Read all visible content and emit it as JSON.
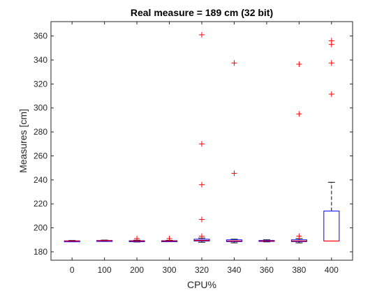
{
  "chart_data": {
    "type": "boxplot",
    "title": "Real measure = 189 cm (32 bit)",
    "xlabel": "CPU%",
    "ylabel": "Measures [cm]",
    "ylim": [
      173,
      372
    ],
    "yticks": [
      180,
      200,
      220,
      240,
      260,
      280,
      300,
      320,
      340,
      360
    ],
    "grid": false,
    "categories": [
      "0",
      "100",
      "200",
      "300",
      "320",
      "340",
      "360",
      "380",
      "400"
    ],
    "boxes": [
      {
        "category": "0",
        "whisker_low": 188.6,
        "q1": 188.8,
        "median": 189.0,
        "q3": 189.2,
        "whisker_high": 189.5,
        "outliers": []
      },
      {
        "category": "100",
        "whisker_low": 188.7,
        "q1": 189.0,
        "median": 189.3,
        "q3": 189.5,
        "whisker_high": 189.8,
        "outliers": []
      },
      {
        "category": "200",
        "whisker_low": 188.2,
        "q1": 188.6,
        "median": 189.0,
        "q3": 189.3,
        "whisker_high": 189.7,
        "outliers": [
          191
        ]
      },
      {
        "category": "300",
        "whisker_low": 188.4,
        "q1": 188.7,
        "median": 189.0,
        "q3": 189.3,
        "whisker_high": 189.6,
        "outliers": [
          191
        ]
      },
      {
        "category": "320",
        "whisker_low": 188.0,
        "q1": 189.0,
        "median": 189.5,
        "q3": 190.5,
        "whisker_high": 191.5,
        "outliers": [
          193,
          207,
          236,
          270,
          361
        ]
      },
      {
        "category": "340",
        "whisker_low": 187.5,
        "q1": 188.5,
        "median": 189.0,
        "q3": 190.0,
        "whisker_high": 190.5,
        "outliers": [
          245.5,
          337.5
        ]
      },
      {
        "category": "360",
        "whisker_low": 188.3,
        "q1": 188.7,
        "median": 189.0,
        "q3": 189.5,
        "whisker_high": 190.0,
        "outliers": []
      },
      {
        "category": "380",
        "whisker_low": 187.5,
        "q1": 188.5,
        "median": 189.0,
        "q3": 190.0,
        "whisker_high": 191.0,
        "outliers": [
          193,
          295,
          336.5
        ]
      },
      {
        "category": "400",
        "whisker_low": 189.0,
        "q1": 189.0,
        "median": 189.0,
        "q3": 214.0,
        "whisker_high": 238.0,
        "outliers": [
          311.5,
          337.5,
          353,
          356
        ]
      }
    ],
    "colors": {
      "box": "#0000ff",
      "median": "#ff0000",
      "whisker": "#000000",
      "outlier": "#ff0000",
      "axis": "#262626"
    }
  }
}
